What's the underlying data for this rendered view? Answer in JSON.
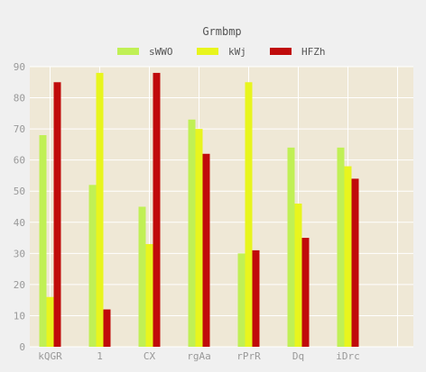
{
  "chart_data": {
    "type": "bar",
    "title": "Grmbmp",
    "xlabel": "",
    "ylabel": "",
    "categories": [
      "kQGR",
      "1",
      "CX",
      "rgAa",
      "rPrR",
      "Dq",
      "iDrc"
    ],
    "series": [
      {
        "name": "sWWO",
        "color": "#c0f055",
        "values": [
          68,
          52,
          45,
          73,
          30,
          64,
          64
        ]
      },
      {
        "name": "kWj",
        "color": "#e8f51d",
        "values": [
          16,
          88,
          33,
          70,
          85,
          46,
          58
        ]
      },
      {
        "name": "HFZh",
        "color": "#c00b0b",
        "values": [
          85,
          12,
          88,
          62,
          31,
          35,
          54
        ]
      }
    ],
    "ylim": [
      0,
      90
    ],
    "yticks": [
      0,
      10,
      20,
      30,
      40,
      50,
      60,
      70,
      80,
      90
    ],
    "grid": true,
    "legend_position": "top-center",
    "plot_background": "#efe8d6"
  }
}
